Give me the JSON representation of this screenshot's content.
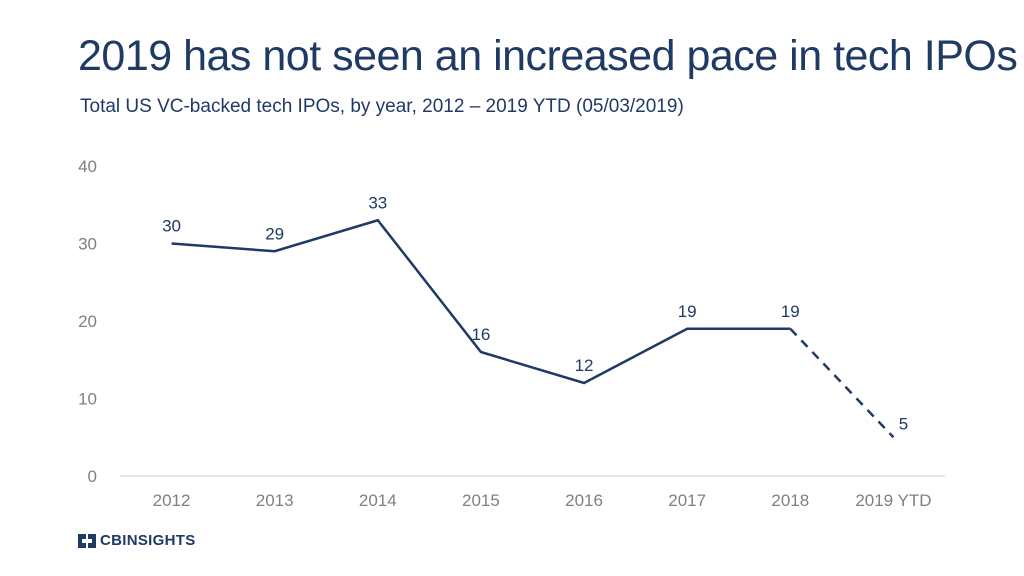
{
  "header": {
    "title": "2019 has not seen an increased pace in tech IPOs",
    "subtitle": "Total US VC-backed tech IPOs, by year, 2012 – 2019 YTD (05/03/2019)"
  },
  "brand": {
    "label": "CBINSIGHTS",
    "icon": "cb-logo-icon",
    "color": "#1f3a64"
  },
  "chart_data": {
    "type": "line",
    "categories": [
      "2012",
      "2013",
      "2014",
      "2015",
      "2016",
      "2017",
      "2018",
      "2019 YTD"
    ],
    "values": [
      30,
      29,
      33,
      16,
      12,
      19,
      19,
      5
    ],
    "data_labels": [
      "30",
      "29",
      "33",
      "16",
      "12",
      "19",
      "19",
      "5"
    ],
    "dashed_from_index": 6,
    "ylim": [
      0,
      40
    ],
    "yticks": [
      0,
      10,
      20,
      30,
      40
    ],
    "ytick_labels": [
      "0",
      "10",
      "20",
      "30",
      "40"
    ],
    "grid": false,
    "line_color": "#1f3a64",
    "axis_text_color": "#808080",
    "xlabel": "",
    "ylabel": ""
  }
}
